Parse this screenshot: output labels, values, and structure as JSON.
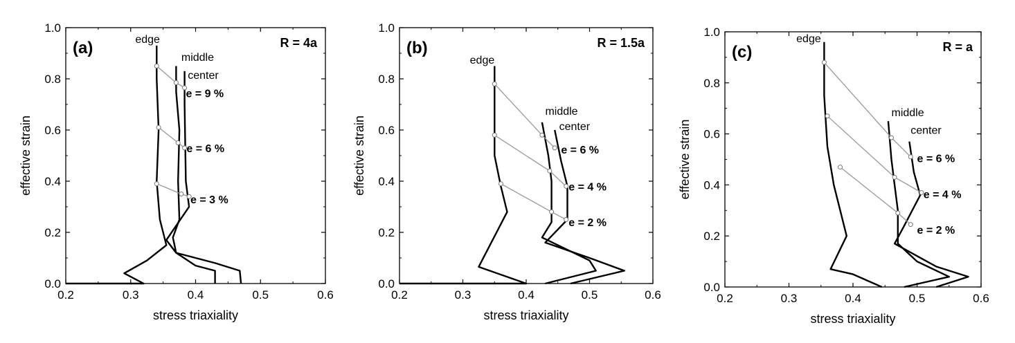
{
  "chart_data": [
    {
      "type": "line",
      "panel_label": "(a)",
      "radius_label": "R = 4a",
      "xlabel": "stress triaxiality",
      "ylabel": "effective strain",
      "xlim": [
        0.2,
        0.6
      ],
      "ylim": [
        0.0,
        1.0
      ],
      "xticks": [
        "0.2",
        "0.3",
        "0.4",
        "0.5",
        "0.6"
      ],
      "yticks": [
        "0.0",
        "0.2",
        "0.4",
        "0.6",
        "0.8",
        "1.0"
      ],
      "series": [
        {
          "name": "edge",
          "points": [
            [
              0.2,
              0.0
            ],
            [
              0.32,
              0.0
            ],
            [
              0.29,
              0.04
            ],
            [
              0.325,
              0.09
            ],
            [
              0.355,
              0.15
            ],
            [
              0.345,
              0.25
            ],
            [
              0.34,
              0.4
            ],
            [
              0.343,
              0.6
            ],
            [
              0.34,
              0.8
            ],
            [
              0.34,
              0.93
            ]
          ]
        },
        {
          "name": "middle",
          "points": [
            [
              0.43,
              0.0
            ],
            [
              0.43,
              0.05
            ],
            [
              0.4,
              0.07
            ],
            [
              0.37,
              0.12
            ],
            [
              0.365,
              0.18
            ],
            [
              0.375,
              0.25
            ],
            [
              0.373,
              0.4
            ],
            [
              0.375,
              0.6
            ],
            [
              0.37,
              0.75
            ],
            [
              0.37,
              0.85
            ]
          ]
        },
        {
          "name": "center",
          "points": [
            [
              0.47,
              0.0
            ],
            [
              0.468,
              0.05
            ],
            [
              0.43,
              0.08
            ],
            [
              0.37,
              0.12
            ],
            [
              0.355,
              0.17
            ],
            [
              0.39,
              0.3
            ],
            [
              0.385,
              0.4
            ],
            [
              0.384,
              0.55
            ],
            [
              0.383,
              0.7
            ],
            [
              0.383,
              0.83
            ]
          ]
        }
      ],
      "labels": [
        {
          "text": "edge",
          "x": 0.345,
          "y": 0.94
        },
        {
          "text": "middle",
          "x": 0.378,
          "y": 0.87
        },
        {
          "text": "center",
          "x": 0.388,
          "y": 0.8
        }
      ],
      "iso_lines": [
        {
          "label": "e = 9 %",
          "points": [
            [
              0.34,
              0.85
            ],
            [
              0.37,
              0.785
            ],
            [
              0.383,
              0.765
            ]
          ],
          "label_x": 0.385,
          "label_y": 0.745
        },
        {
          "label": "e = 6 %",
          "points": [
            [
              0.343,
              0.61
            ],
            [
              0.373,
              0.55
            ],
            [
              0.383,
              0.53
            ]
          ],
          "label_x": 0.386,
          "label_y": 0.53
        },
        {
          "label": "e = 3 %",
          "points": [
            [
              0.34,
              0.39
            ],
            [
              0.378,
              0.35
            ],
            [
              0.39,
              0.34
            ]
          ],
          "label_x": 0.392,
          "label_y": 0.33
        }
      ]
    },
    {
      "type": "line",
      "panel_label": "(b)",
      "radius_label": "R = 1.5a",
      "xlabel": "stress triaxiality",
      "ylabel": "effective strain",
      "xlim": [
        0.2,
        0.6
      ],
      "ylim": [
        0.0,
        1.0
      ],
      "xticks": [
        "0.2",
        "0.3",
        "0.4",
        "0.5",
        "0.6"
      ],
      "yticks": [
        "0.0",
        "0.2",
        "0.4",
        "0.6",
        "0.8",
        "1.0"
      ],
      "series": [
        {
          "name": "edge",
          "points": [
            [
              0.2,
              0.0
            ],
            [
              0.4,
              0.0
            ],
            [
              0.325,
              0.065
            ],
            [
              0.37,
              0.28
            ],
            [
              0.36,
              0.38
            ],
            [
              0.35,
              0.5
            ],
            [
              0.35,
              0.6
            ],
            [
              0.35,
              0.8
            ],
            [
              0.35,
              0.85
            ]
          ]
        },
        {
          "name": "middle",
          "points": [
            [
              0.43,
              0.0
            ],
            [
              0.51,
              0.05
            ],
            [
              0.5,
              0.09
            ],
            [
              0.425,
              0.18
            ],
            [
              0.44,
              0.24
            ],
            [
              0.44,
              0.4
            ],
            [
              0.435,
              0.5
            ],
            [
              0.425,
              0.63
            ]
          ]
        },
        {
          "name": "center",
          "points": [
            [
              0.47,
              0.0
            ],
            [
              0.555,
              0.05
            ],
            [
              0.5,
              0.1
            ],
            [
              0.43,
              0.16
            ],
            [
              0.465,
              0.25
            ],
            [
              0.465,
              0.38
            ],
            [
              0.455,
              0.48
            ],
            [
              0.445,
              0.6
            ]
          ]
        }
      ],
      "labels": [
        {
          "text": "edge",
          "x": 0.35,
          "y": 0.86
        },
        {
          "text": "middle",
          "x": 0.43,
          "y": 0.66
        },
        {
          "text": "center",
          "x": 0.452,
          "y": 0.6
        }
      ],
      "iso_lines": [
        {
          "label": "e = 6 %",
          "points": [
            [
              0.35,
              0.78
            ],
            [
              0.425,
              0.58
            ],
            [
              0.445,
              0.53
            ]
          ],
          "label_x": 0.455,
          "label_y": 0.525
        },
        {
          "label": "e = 4 %",
          "points": [
            [
              0.35,
              0.58
            ],
            [
              0.437,
              0.44
            ],
            [
              0.463,
              0.38
            ]
          ],
          "label_x": 0.467,
          "label_y": 0.38
        },
        {
          "label": "e = 2 %",
          "points": [
            [
              0.36,
              0.39
            ],
            [
              0.44,
              0.28
            ],
            [
              0.463,
              0.25
            ]
          ],
          "label_x": 0.467,
          "label_y": 0.24
        }
      ]
    },
    {
      "type": "line",
      "panel_label": "(c)",
      "radius_label": "R = a",
      "xlabel": "stress triaxiality",
      "ylabel": "effective strain",
      "xlim": [
        0.2,
        0.6
      ],
      "ylim": [
        0.0,
        1.0
      ],
      "xticks": [
        "0.2",
        "0.3",
        "0.4",
        "0.5",
        "0.6"
      ],
      "yticks": [
        "0.0",
        "0.2",
        "0.4",
        "0.6",
        "0.8",
        "1.0"
      ],
      "series": [
        {
          "name": "edge",
          "points": [
            [
              0.445,
              0.0
            ],
            [
              0.4,
              0.05
            ],
            [
              0.365,
              0.07
            ],
            [
              0.39,
              0.2
            ],
            [
              0.37,
              0.4
            ],
            [
              0.36,
              0.55
            ],
            [
              0.355,
              0.75
            ],
            [
              0.355,
              0.96
            ]
          ]
        },
        {
          "name": "middle",
          "points": [
            [
              0.48,
              0.0
            ],
            [
              0.55,
              0.04
            ],
            [
              0.5,
              0.1
            ],
            [
              0.47,
              0.17
            ],
            [
              0.47,
              0.3
            ],
            [
              0.465,
              0.4
            ],
            [
              0.46,
              0.5
            ],
            [
              0.455,
              0.65
            ]
          ]
        },
        {
          "name": "center",
          "points": [
            [
              0.53,
              0.0
            ],
            [
              0.58,
              0.04
            ],
            [
              0.53,
              0.08
            ],
            [
              0.465,
              0.17
            ],
            [
              0.48,
              0.24
            ],
            [
              0.505,
              0.36
            ],
            [
              0.495,
              0.45
            ],
            [
              0.488,
              0.57
            ]
          ]
        }
      ],
      "labels": [
        {
          "text": "edge",
          "x": 0.35,
          "y": 0.96
        },
        {
          "text": "middle",
          "x": 0.46,
          "y": 0.67
        },
        {
          "text": "center",
          "x": 0.49,
          "y": 0.6
        }
      ],
      "iso_lines": [
        {
          "label": "e = 6 %",
          "points": [
            [
              0.355,
              0.88
            ],
            [
              0.46,
              0.585
            ],
            [
              0.49,
              0.51
            ]
          ],
          "label_x": 0.5,
          "label_y": 0.505
        },
        {
          "label": "e = 4 %",
          "points": [
            [
              0.36,
              0.67
            ],
            [
              0.465,
              0.43
            ],
            [
              0.507,
              0.37
            ]
          ],
          "label_x": 0.51,
          "label_y": 0.365
        },
        {
          "label": "e = 2 %",
          "points": [
            [
              0.38,
              0.47
            ],
            [
              0.47,
              0.29
            ],
            [
              0.49,
              0.245
            ]
          ],
          "label_x": 0.5,
          "label_y": 0.225
        }
      ]
    }
  ]
}
